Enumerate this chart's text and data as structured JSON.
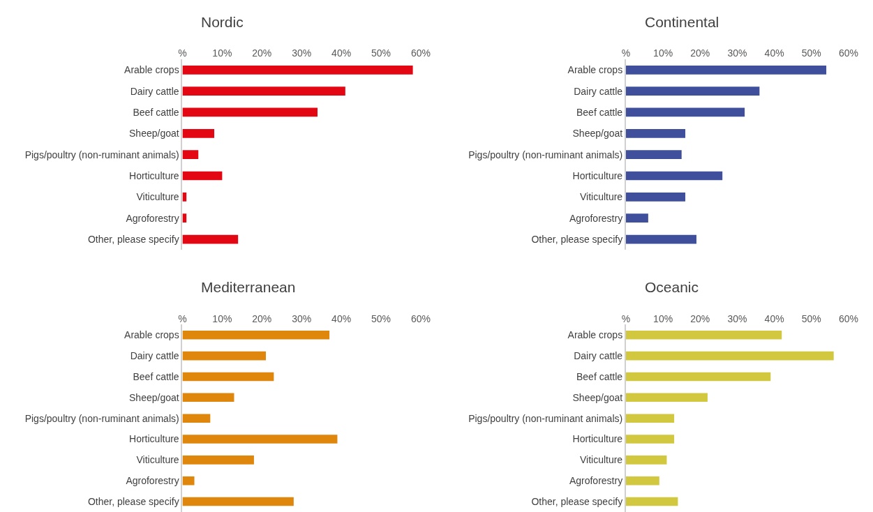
{
  "chart_data": [
    {
      "type": "bar",
      "orientation": "horizontal",
      "title": "Nordic",
      "categories": [
        "Arable crops",
        "Dairy cattle",
        "Beef cattle",
        "Sheep/goat",
        "Pigs/poultry (non-ruminant animals)",
        "Horticulture",
        "Viticulture",
        "Agroforestry",
        "Other, please specify"
      ],
      "values": [
        58,
        41,
        34,
        8,
        4,
        10,
        1,
        1,
        14
      ],
      "color": "#e30613",
      "xlim": [
        0,
        60
      ],
      "xticks": [
        {
          "value": 0,
          "label": "%"
        },
        {
          "value": 10,
          "label": "10%"
        },
        {
          "value": 20,
          "label": "20%"
        },
        {
          "value": 30,
          "label": "30%"
        },
        {
          "value": 40,
          "label": "40%"
        },
        {
          "value": 50,
          "label": "50%"
        },
        {
          "value": 60,
          "label": "60%"
        }
      ],
      "grid": false,
      "legend": false
    },
    {
      "type": "bar",
      "orientation": "horizontal",
      "title": "Continental",
      "categories": [
        "Arable crops",
        "Dairy cattle",
        "Beef cattle",
        "Sheep/goat",
        "Pigs/poultry (non-ruminant animals)",
        "Horticulture",
        "Viticulture",
        "Agroforestry",
        "Other, please specify"
      ],
      "values": [
        54,
        36,
        32,
        16,
        15,
        26,
        16,
        6,
        19
      ],
      "color": "#3f4f9b",
      "xlim": [
        0,
        60
      ],
      "xticks": [
        {
          "value": 0,
          "label": "%"
        },
        {
          "value": 10,
          "label": "10%"
        },
        {
          "value": 20,
          "label": "20%"
        },
        {
          "value": 30,
          "label": "30%"
        },
        {
          "value": 40,
          "label": "40%"
        },
        {
          "value": 50,
          "label": "50%"
        },
        {
          "value": 60,
          "label": "60%"
        }
      ],
      "grid": false,
      "legend": false
    },
    {
      "type": "bar",
      "orientation": "horizontal",
      "title": "Mediterranean",
      "categories": [
        "Arable crops",
        "Dairy cattle",
        "Beef cattle",
        "Sheep/goat",
        "Pigs/poultry (non-ruminant animals)",
        "Horticulture",
        "Viticulture",
        "Agroforestry",
        "Other, please specify"
      ],
      "values": [
        37,
        21,
        23,
        13,
        7,
        39,
        18,
        3,
        28
      ],
      "color": "#df870d",
      "xlim": [
        0,
        60
      ],
      "xticks": [
        {
          "value": 0,
          "label": "%"
        },
        {
          "value": 10,
          "label": "10%"
        },
        {
          "value": 20,
          "label": "20%"
        },
        {
          "value": 30,
          "label": "30%"
        },
        {
          "value": 40,
          "label": "40%"
        },
        {
          "value": 50,
          "label": "50%"
        },
        {
          "value": 60,
          "label": "60%"
        }
      ],
      "grid": false,
      "legend": false
    },
    {
      "type": "bar",
      "orientation": "horizontal",
      "title": "Oceanic",
      "categories": [
        "Arable crops",
        "Dairy cattle",
        "Beef cattle",
        "Sheep/goat",
        "Pigs/poultry (non-ruminant animals)",
        "Horticulture",
        "Viticulture",
        "Agroforestry",
        "Other, please specify"
      ],
      "values": [
        42,
        56,
        39,
        22,
        13,
        13,
        11,
        9,
        14
      ],
      "color": "#d2c83f",
      "xlim": [
        0,
        60
      ],
      "xticks": [
        {
          "value": 0,
          "label": "%"
        },
        {
          "value": 10,
          "label": "10%"
        },
        {
          "value": 20,
          "label": "20%"
        },
        {
          "value": 30,
          "label": "30%"
        },
        {
          "value": 40,
          "label": "40%"
        },
        {
          "value": 50,
          "label": "50%"
        },
        {
          "value": 60,
          "label": "60%"
        }
      ],
      "grid": false,
      "legend": false
    }
  ]
}
